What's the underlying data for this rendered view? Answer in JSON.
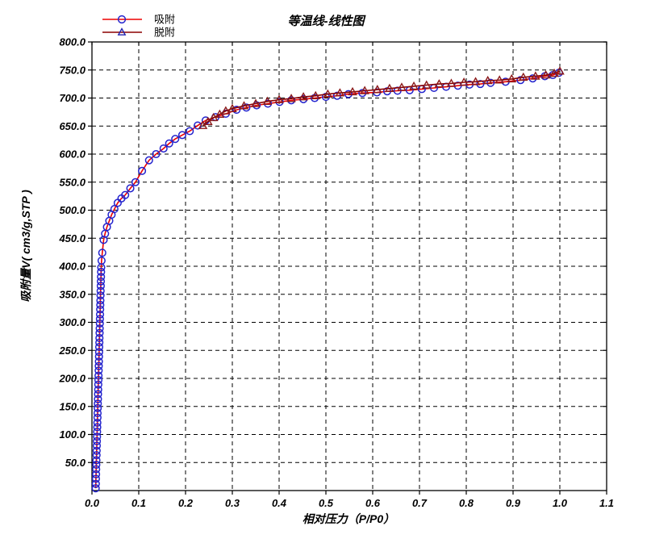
{
  "chart_data": {
    "type": "line",
    "title": "等温线-线性图",
    "xlabel": "相对压力（P/P0）",
    "ylabel": "吸附量V( cm3/g,STP )",
    "xlim": [
      0.0,
      1.1
    ],
    "ylim": [
      0,
      800
    ],
    "grid": true,
    "grid_style": "dashed",
    "legend_position": "top-left",
    "xticks": [
      0.0,
      0.1,
      0.2,
      0.3,
      0.4,
      0.5,
      0.6,
      0.7,
      0.8,
      0.9,
      1.0,
      1.1
    ],
    "xtick_labels": [
      "0.0",
      "0.1",
      "0.2",
      "0.3",
      "0.4",
      "0.5",
      "0.6",
      "0.7",
      "0.8",
      "0.9",
      "1.0",
      "1.1"
    ],
    "yticks": [
      50,
      100,
      150,
      200,
      250,
      300,
      350,
      400,
      450,
      500,
      550,
      600,
      650,
      700,
      750,
      800
    ],
    "ytick_labels": [
      "50.0",
      "100.0",
      "150.0",
      "200.0",
      "250.0",
      "300.0",
      "350.0",
      "400.0",
      "450.0",
      "500.0",
      "550.0",
      "600.0",
      "650.0",
      "700.0",
      "750.0",
      "800.0"
    ],
    "colors": {
      "grid": "#000000",
      "frame": "#000000",
      "text": "#000000",
      "background": "#ffffff"
    },
    "series": [
      {
        "name": "吸附",
        "marker": "circle",
        "line_color": "#ee0000",
        "marker_color": "#2323cd",
        "legend_marker_color": "#2323cd",
        "points": [
          [
            0.008,
            4
          ],
          [
            0.0083,
            12
          ],
          [
            0.0085,
            21
          ],
          [
            0.0088,
            29
          ],
          [
            0.009,
            38
          ],
          [
            0.0093,
            46
          ],
          [
            0.0095,
            54
          ],
          [
            0.0098,
            63
          ],
          [
            0.01,
            71
          ],
          [
            0.0103,
            80
          ],
          [
            0.0105,
            88
          ],
          [
            0.0108,
            96
          ],
          [
            0.011,
            105
          ],
          [
            0.0113,
            113
          ],
          [
            0.0115,
            121
          ],
          [
            0.0118,
            130
          ],
          [
            0.012,
            138
          ],
          [
            0.0123,
            147
          ],
          [
            0.0125,
            155
          ],
          [
            0.0128,
            163
          ],
          [
            0.013,
            172
          ],
          [
            0.0133,
            180
          ],
          [
            0.0135,
            189
          ],
          [
            0.0138,
            197
          ],
          [
            0.014,
            205
          ],
          [
            0.0143,
            214
          ],
          [
            0.0145,
            222
          ],
          [
            0.0148,
            230
          ],
          [
            0.015,
            239
          ],
          [
            0.0153,
            247
          ],
          [
            0.0155,
            256
          ],
          [
            0.0158,
            264
          ],
          [
            0.016,
            272
          ],
          [
            0.0163,
            281
          ],
          [
            0.0165,
            289
          ],
          [
            0.0168,
            298
          ],
          [
            0.017,
            306
          ],
          [
            0.0173,
            314
          ],
          [
            0.0175,
            323
          ],
          [
            0.0178,
            331
          ],
          [
            0.018,
            339
          ],
          [
            0.0183,
            348
          ],
          [
            0.0185,
            356
          ],
          [
            0.0188,
            365
          ],
          [
            0.019,
            373
          ],
          [
            0.0193,
            381
          ],
          [
            0.0195,
            390
          ],
          [
            0.0198,
            398
          ],
          [
            0.0205,
            410
          ],
          [
            0.022,
            424
          ],
          [
            0.025,
            447
          ],
          [
            0.028,
            458
          ],
          [
            0.032,
            470
          ],
          [
            0.037,
            481
          ],
          [
            0.042,
            492
          ],
          [
            0.048,
            502
          ],
          [
            0.055,
            513
          ],
          [
            0.063,
            521
          ],
          [
            0.071,
            527
          ],
          [
            0.082,
            539
          ],
          [
            0.093,
            550
          ],
          [
            0.107,
            570
          ],
          [
            0.122,
            589
          ],
          [
            0.137,
            600
          ],
          [
            0.153,
            610
          ],
          [
            0.165,
            619
          ],
          [
            0.178,
            627
          ],
          [
            0.193,
            634
          ],
          [
            0.209,
            641
          ],
          [
            0.226,
            651
          ],
          [
            0.243,
            660
          ],
          [
            0.264,
            666
          ],
          [
            0.286,
            672
          ],
          [
            0.309,
            679
          ],
          [
            0.33,
            683
          ],
          [
            0.352,
            687
          ],
          [
            0.376,
            690
          ],
          [
            0.401,
            693
          ],
          [
            0.426,
            696
          ],
          [
            0.452,
            698
          ],
          [
            0.476,
            700
          ],
          [
            0.5,
            702
          ],
          [
            0.524,
            704
          ],
          [
            0.548,
            707
          ],
          [
            0.578,
            709
          ],
          [
            0.609,
            710
          ],
          [
            0.631,
            712
          ],
          [
            0.653,
            713
          ],
          [
            0.679,
            714
          ],
          [
            0.705,
            716
          ],
          [
            0.731,
            718
          ],
          [
            0.757,
            720
          ],
          [
            0.782,
            722
          ],
          [
            0.807,
            724
          ],
          [
            0.83,
            725
          ],
          [
            0.852,
            727
          ],
          [
            0.884,
            729
          ],
          [
            0.916,
            732
          ],
          [
            0.942,
            735
          ],
          [
            0.968,
            739
          ],
          [
            0.985,
            741
          ],
          [
            0.998,
            745
          ]
        ]
      },
      {
        "name": "脱附",
        "marker": "triangle",
        "line_color": "#8b0000",
        "marker_color": "#8b1a1a",
        "legend_marker_color": "#2323b0",
        "points": [
          [
            1.0,
            748
          ],
          [
            0.988,
            744
          ],
          [
            0.97,
            741
          ],
          [
            0.948,
            739
          ],
          [
            0.922,
            737
          ],
          [
            0.897,
            734
          ],
          [
            0.871,
            732
          ],
          [
            0.846,
            731
          ],
          [
            0.82,
            729
          ],
          [
            0.795,
            728
          ],
          [
            0.768,
            726
          ],
          [
            0.742,
            725
          ],
          [
            0.715,
            723
          ],
          [
            0.688,
            721
          ],
          [
            0.662,
            719
          ],
          [
            0.636,
            717
          ],
          [
            0.61,
            715
          ],
          [
            0.583,
            713
          ],
          [
            0.557,
            711
          ],
          [
            0.53,
            709
          ],
          [
            0.504,
            707
          ],
          [
            0.478,
            704
          ],
          [
            0.452,
            702
          ],
          [
            0.426,
            699
          ],
          [
            0.4,
            697
          ],
          [
            0.375,
            694
          ],
          [
            0.35,
            690
          ],
          [
            0.325,
            686
          ],
          [
            0.3,
            681
          ],
          [
            0.286,
            677
          ],
          [
            0.273,
            671
          ],
          [
            0.26,
            665
          ],
          [
            0.248,
            658
          ],
          [
            0.237,
            651
          ]
        ]
      }
    ]
  }
}
